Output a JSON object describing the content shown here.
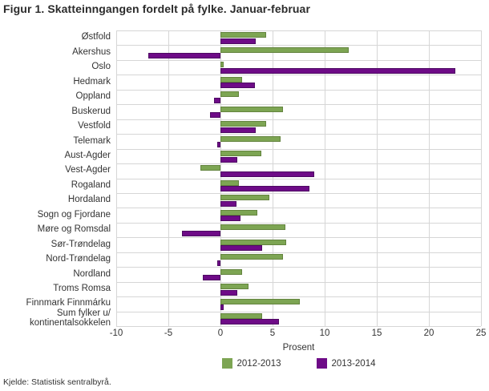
{
  "title": "Figur 1. Skatteinngangen fordelt på fylke. Januar-februar",
  "source": "Kjelde: Statistisk sentralbyrå.",
  "colors": {
    "series_2012_2013": "#7DA553",
    "series_2013_2014": "#6E0B87",
    "grid": "#D6D6D6",
    "text": "#333333"
  },
  "chart_data": {
    "type": "bar",
    "orientation": "horizontal",
    "title": "Figur 1. Skatteinngangen fordelt på fylke. Januar-februar",
    "xlabel": "Prosent",
    "xlim": [
      -10,
      25
    ],
    "xticks": [
      -10,
      -5,
      0,
      5,
      10,
      15,
      20,
      25
    ],
    "grid": true,
    "legend_position": "bottom",
    "categories": [
      "Østfold",
      "Akershus",
      "Oslo",
      "Hedmark",
      "Oppland",
      "Buskerud",
      "Vestfold",
      "Telemark",
      "Aust-Agder",
      "Vest-Agder",
      "Rogaland",
      "Hordaland",
      "Sogn og Fjordane",
      "Møre og Romsdal",
      "Sør-Trøndelag",
      "Nord-Trøndelag",
      "Nordland",
      "Troms Romsa",
      "Finnmark Finnmárku",
      "Sum fylker u/\nkontinentalsokkelen"
    ],
    "series": [
      {
        "name": "2012-2013",
        "color": "#7DA553",
        "values": [
          4.4,
          12.3,
          0.3,
          2.1,
          1.8,
          6.0,
          4.4,
          5.8,
          3.9,
          -1.9,
          1.8,
          4.7,
          3.5,
          6.2,
          6.3,
          6.0,
          2.1,
          2.7,
          7.6,
          4.0
        ]
      },
      {
        "name": "2013-2014",
        "color": "#6E0B87",
        "values": [
          3.4,
          -6.9,
          22.5,
          3.3,
          -0.6,
          -1.0,
          3.4,
          -0.3,
          1.6,
          9.0,
          8.5,
          1.5,
          1.9,
          -3.7,
          4.0,
          -0.3,
          -1.7,
          1.6,
          0.3,
          5.6
        ]
      }
    ]
  }
}
